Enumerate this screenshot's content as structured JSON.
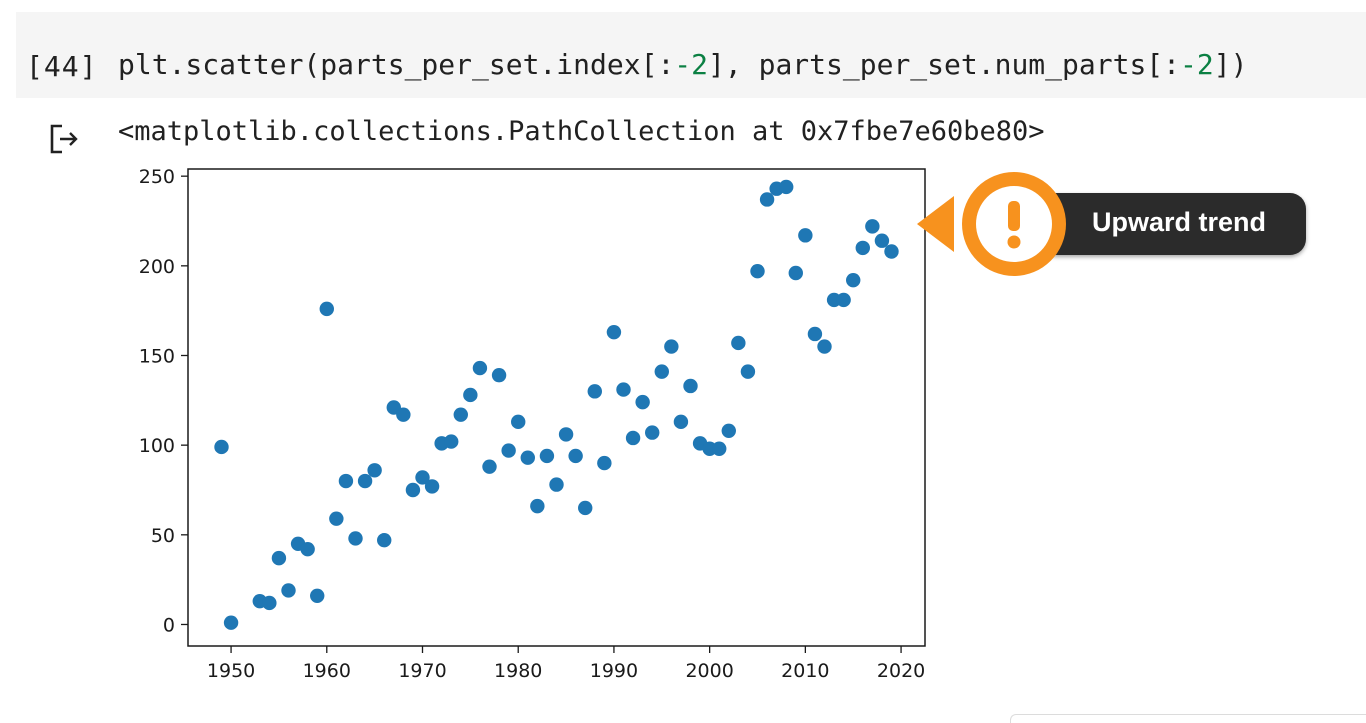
{
  "cell": {
    "execution_count": "[44]",
    "code_parts": [
      "plt.scatter(parts_per_set.index[:",
      "-2",
      "], parts_per_set.num_parts[:",
      "-2",
      "])"
    ]
  },
  "output": {
    "text": "<matplotlib.collections.PathCollection at 0x7fbe7e60be80>",
    "icon": "output-arrow-icon"
  },
  "callout": {
    "label": "Upward trend",
    "icon": "exclamation-icon",
    "accent_color": "#f7921e",
    "pill_color": "#2b2b2b"
  },
  "chart_data": {
    "type": "scatter",
    "color": "#1f77b4",
    "xlim": [
      1945.5,
      2022.5
    ],
    "ylim": [
      -12,
      254
    ],
    "xticks": [
      1950,
      1960,
      1970,
      1980,
      1990,
      2000,
      2010,
      2020
    ],
    "yticks": [
      0,
      50,
      100,
      150,
      200,
      250
    ],
    "grid": false,
    "points": [
      [
        1949,
        99
      ],
      [
        1950,
        1
      ],
      [
        1953,
        13
      ],
      [
        1954,
        12
      ],
      [
        1955,
        37
      ],
      [
        1956,
        19
      ],
      [
        1957,
        45
      ],
      [
        1958,
        42
      ],
      [
        1959,
        16
      ],
      [
        1960,
        176
      ],
      [
        1961,
        59
      ],
      [
        1962,
        80
      ],
      [
        1963,
        48
      ],
      [
        1964,
        80
      ],
      [
        1965,
        86
      ],
      [
        1966,
        47
      ],
      [
        1967,
        121
      ],
      [
        1968,
        117
      ],
      [
        1969,
        75
      ],
      [
        1970,
        82
      ],
      [
        1971,
        77
      ],
      [
        1972,
        101
      ],
      [
        1973,
        102
      ],
      [
        1974,
        117
      ],
      [
        1975,
        128
      ],
      [
        1976,
        143
      ],
      [
        1977,
        88
      ],
      [
        1978,
        139
      ],
      [
        1979,
        97
      ],
      [
        1980,
        113
      ],
      [
        1981,
        93
      ],
      [
        1982,
        66
      ],
      [
        1983,
        94
      ],
      [
        1984,
        78
      ],
      [
        1985,
        106
      ],
      [
        1986,
        94
      ],
      [
        1987,
        65
      ],
      [
        1988,
        130
      ],
      [
        1989,
        90
      ],
      [
        1990,
        163
      ],
      [
        1991,
        131
      ],
      [
        1992,
        104
      ],
      [
        1993,
        124
      ],
      [
        1994,
        107
      ],
      [
        1995,
        141
      ],
      [
        1996,
        155
      ],
      [
        1997,
        113
      ],
      [
        1998,
        133
      ],
      [
        1999,
        101
      ],
      [
        2000,
        98
      ],
      [
        2001,
        98
      ],
      [
        2002,
        108
      ],
      [
        2003,
        157
      ],
      [
        2004,
        141
      ],
      [
        2005,
        197
      ],
      [
        2006,
        237
      ],
      [
        2007,
        243
      ],
      [
        2008,
        244
      ],
      [
        2009,
        196
      ],
      [
        2010,
        217
      ],
      [
        2011,
        162
      ],
      [
        2012,
        155
      ],
      [
        2013,
        181
      ],
      [
        2014,
        181
      ],
      [
        2015,
        192
      ],
      [
        2016,
        210
      ],
      [
        2017,
        222
      ],
      [
        2018,
        214
      ],
      [
        2019,
        208
      ]
    ]
  }
}
